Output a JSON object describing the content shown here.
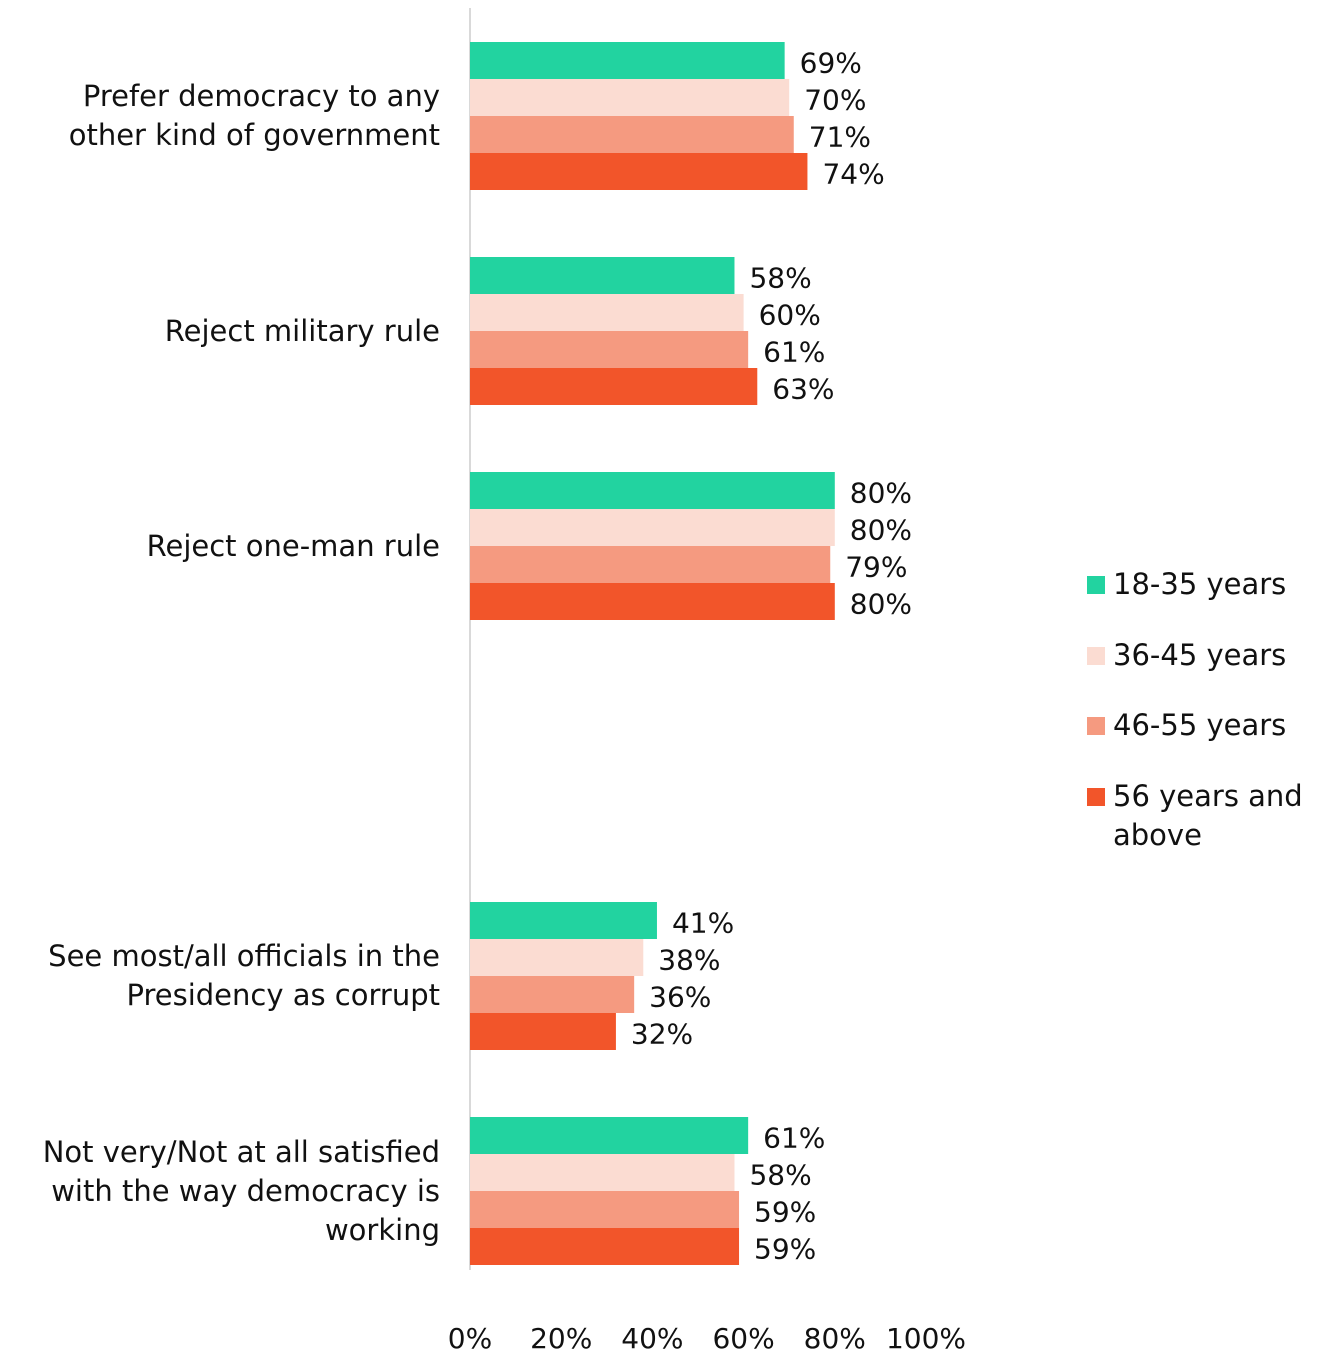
{
  "chart_data": {
    "type": "bar",
    "orientation": "horizontal",
    "categories": [
      "Prefer democracy to any other kind of government",
      "Reject military rule",
      "Reject one-man rule",
      null,
      "See most/all officials in the Presidency as corrupt",
      "Not very/Not at all satisfied with the way democracy is working"
    ],
    "series": [
      {
        "name": "18-35 years",
        "color": "#22d3a0",
        "values": [
          69,
          58,
          80,
          null,
          41,
          61
        ],
        "value_labels": [
          "69%",
          "58%",
          "80%",
          null,
          "41%",
          "61%"
        ]
      },
      {
        "name": "36-45 years",
        "color": "#fbdcd2",
        "values": [
          70,
          60,
          80,
          null,
          38,
          58
        ],
        "value_labels": [
          "70%",
          "60%",
          "80%",
          null,
          "38%",
          "58%"
        ]
      },
      {
        "name": "46-55 years",
        "color": "#f59a80",
        "values": [
          71,
          61,
          79,
          null,
          36,
          59
        ],
        "value_labels": [
          "71%",
          "61%",
          "79%",
          null,
          "36%",
          "59%"
        ]
      },
      {
        "name": "56 years and above",
        "color": "#f2552a",
        "values": [
          74,
          63,
          80,
          null,
          32,
          59
        ],
        "value_labels": [
          "74%",
          "63%",
          "80%",
          null,
          "32%",
          "59%"
        ]
      }
    ],
    "xlim": [
      0,
      100
    ],
    "xticks": [
      {
        "value": 0,
        "label": "0%"
      },
      {
        "value": 20,
        "label": "20%"
      },
      {
        "value": 40,
        "label": "40%"
      },
      {
        "value": 60,
        "label": "60%"
      },
      {
        "value": 80,
        "label": "80%"
      },
      {
        "value": 100,
        "label": "100%"
      }
    ],
    "legend": "right"
  }
}
